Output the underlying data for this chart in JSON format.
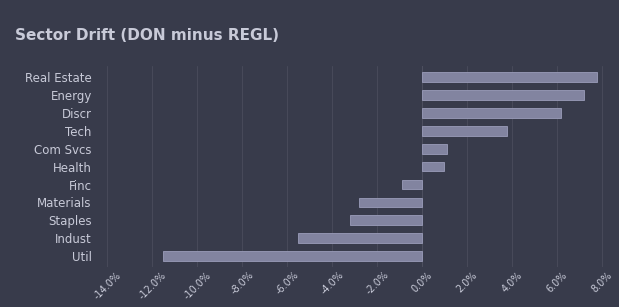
{
  "title": "Sector Drift (DON minus REGL)",
  "categories": [
    "Util",
    "Indust",
    "Staples",
    "Materials",
    "Finc",
    "Health",
    "Com Svcs",
    "Tech",
    "Discr",
    "Energy",
    "Real Estate"
  ],
  "values": [
    -11.5,
    -5.5,
    -3.2,
    -2.8,
    -0.9,
    1.0,
    1.1,
    3.8,
    6.2,
    7.2,
    7.8
  ],
  "bar_color": "#8284a0",
  "bar_edge_color": "#9a9cba",
  "background_color": "#383b4b",
  "title_bg_color": "#484b5e",
  "text_color": "#c8cad8",
  "grid_color": "#4e5060",
  "xlim": [
    -14.5,
    8.5
  ],
  "xtick_values": [
    -14,
    -12,
    -10,
    -8,
    -6,
    -4,
    -2,
    0,
    2,
    4,
    6,
    8
  ],
  "title_fontsize": 11,
  "tick_fontsize": 7,
  "label_fontsize": 8.5
}
